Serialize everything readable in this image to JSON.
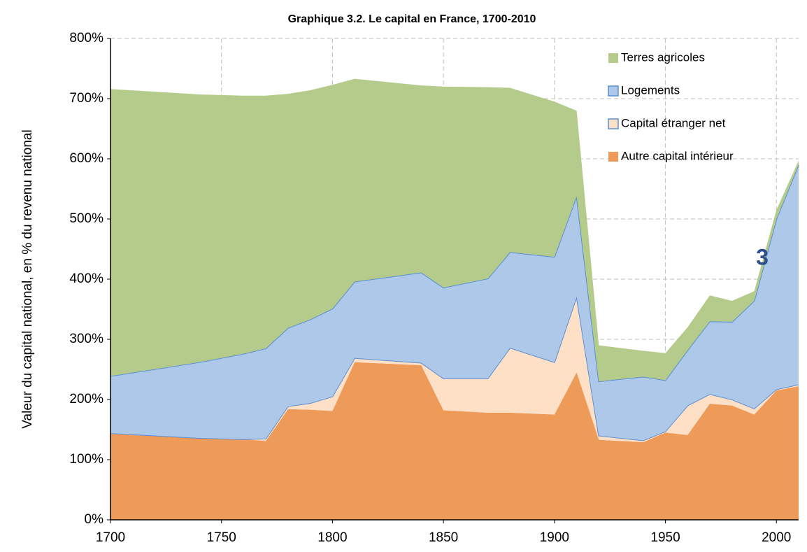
{
  "chart_data": {
    "type": "stacked_area",
    "title": "Graphique 3.2. Le capital en France, 1700-2010",
    "y_label": "Valeur du capital national, en % du revenu national",
    "annotation": "3",
    "x": [
      1700,
      1740,
      1760,
      1770,
      1780,
      1790,
      1800,
      1810,
      1840,
      1850,
      1870,
      1880,
      1900,
      1910,
      1920,
      1940,
      1950,
      1960,
      1970,
      1980,
      1990,
      2000,
      2010
    ],
    "series": [
      {
        "name": "Autre capital intérieur",
        "color": "#ee9a59",
        "values": [
          143,
          136,
          134,
          131,
          184,
          183,
          181,
          262,
          257,
          182,
          178,
          178,
          175,
          245,
          133,
          129,
          145,
          141,
          193,
          190,
          175,
          215,
          222
        ]
      },
      {
        "name": "Capital étranger net",
        "color": "#fde0c6",
        "line_color": "#5b8fd1",
        "values": [
          1,
          0,
          0,
          4,
          5,
          11,
          24,
          7,
          4,
          53,
          57,
          108,
          87,
          126,
          7,
          3,
          2,
          49,
          16,
          10,
          10,
          2,
          3
        ]
      },
      {
        "name": "Logements",
        "color": "#aec8ea",
        "line_color": "#5b8fd1",
        "values": [
          95,
          126,
          142,
          150,
          130,
          139,
          146,
          127,
          150,
          151,
          166,
          159,
          175,
          167,
          90,
          106,
          85,
          92,
          121,
          129,
          179,
          283,
          365
        ]
      },
      {
        "name": "Terres agricoles",
        "color": "#b4cb8b",
        "values": [
          477,
          445,
          429,
          420,
          389,
          381,
          372,
          337,
          311,
          334,
          318,
          273,
          258,
          142,
          60,
          43,
          45,
          38,
          43,
          35,
          16,
          15,
          7
        ]
      }
    ],
    "xlim": [
      1700,
      2010
    ],
    "xticks": [
      1700,
      1750,
      1800,
      1850,
      1900,
      1950,
      2000
    ],
    "ylim": [
      0,
      800
    ],
    "yticks": [
      {
        "value": 0,
        "label": "0%"
      },
      {
        "value": 100,
        "label": "100%"
      },
      {
        "value": 200,
        "label": "200%"
      },
      {
        "value": 300,
        "label": "300%"
      },
      {
        "value": 400,
        "label": "400%"
      },
      {
        "value": 500,
        "label": "500%"
      },
      {
        "value": 600,
        "label": "600%"
      },
      {
        "value": 700,
        "label": "700%"
      },
      {
        "value": 800,
        "label": "800%"
      }
    ],
    "grid": true,
    "legend": "top-right"
  }
}
